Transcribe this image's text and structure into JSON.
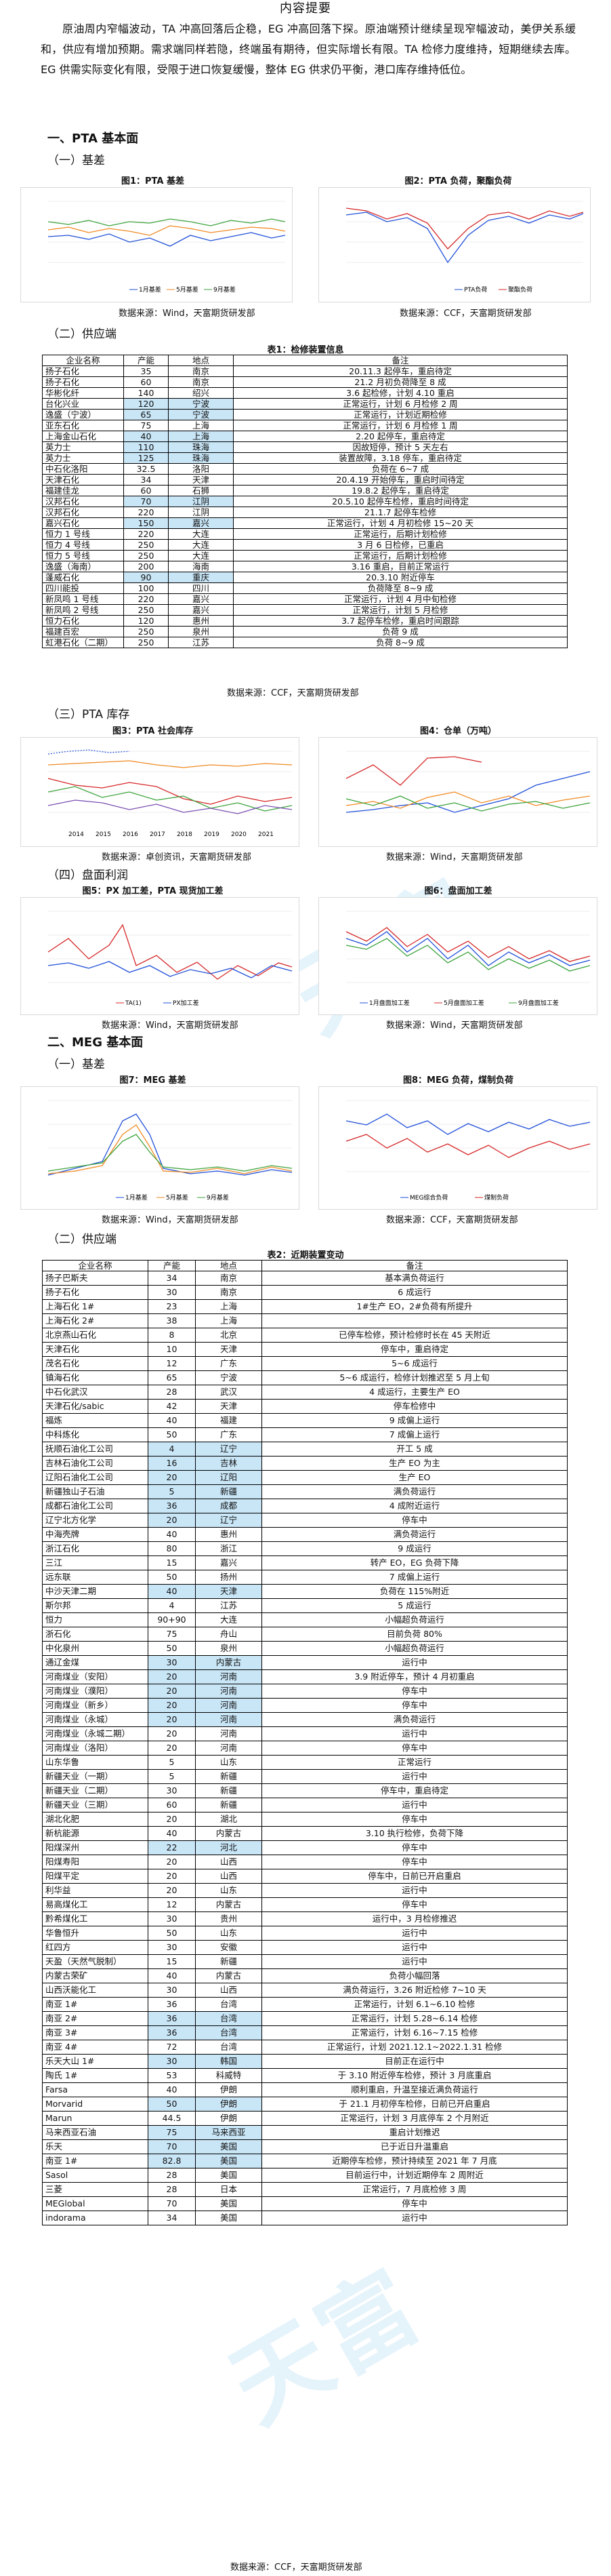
{
  "doc_title": "内容提要",
  "summary": "原油周内窄幅波动，TA 冲高回落后企稳，EG 冲高回落下探。原油端预计继续呈现窄幅波动，美伊关系缓和，供应有增加预期。需求端同样若隐，终端虽有期待，但实际增长有限。TA 检修力度维持，短期继续去库。EG 供需实际变化有限，受限于进口恢复缓慢，整体 EG 供求仍平衡，港口库存维持低位。",
  "sections": {
    "pta": "一、PTA 基本面",
    "pta_basis": "（一）基差",
    "pta_supply": "（二）供应端",
    "pta_inventory": "（三）PTA 库存",
    "pta_margin": "（四）盘面利润",
    "meg": "二、MEG 基本面",
    "meg_basis": "（一）基差",
    "meg_supply": "（二）供应端"
  },
  "figures": {
    "f1": {
      "title": "图1：PTA 基差",
      "source": "数据来源：Wind，天富期货研发部",
      "legend": [
        "1月基差",
        "5月基差",
        "9月基差"
      ]
    },
    "f2": {
      "title": "图2：PTA 负荷，聚酯负荷",
      "source": "数据来源：CCF，天富期货研发部",
      "legend": [
        "PTA负荷",
        "聚酯负荷"
      ]
    },
    "f3": {
      "title": "图3：PTA 社会库存",
      "source": "数据来源：卓创资讯，天富期货研发部",
      "legend": [
        "2014",
        "2015",
        "2016",
        "2017",
        "2018",
        "2019",
        "2020",
        "2021"
      ]
    },
    "f4": {
      "title": "图4：仓单（万吨）",
      "source": "数据来源：Wind，天富期货研发部"
    },
    "f5": {
      "title": "图5：PX 加工差，PTA 现货加工差",
      "source": "数据来源：Wind，天富期货研发部",
      "legend": [
        "TA(1)",
        "PX加工差"
      ]
    },
    "f6": {
      "title": "图6：盘面加工差",
      "source": "数据来源：Wind，天富期货研发部",
      "legend": [
        "1月盘面加工差",
        "5月盘面加工差",
        "9月盘面加工差"
      ]
    },
    "f7": {
      "title": "图7：MEG 基差",
      "source": "数据来源：Wind，天富期货研发部",
      "legend": [
        "1月基差",
        "5月基差",
        "9月基差"
      ]
    },
    "f8": {
      "title": "图8：MEG 负荷，煤制负荷",
      "source": "数据来源：CCF，天富期货研发部",
      "legend": [
        "MEG综合负荷",
        "煤制负荷"
      ]
    }
  },
  "table1": {
    "title": "表1：检修装置信息",
    "headers": [
      "企业名称",
      "产能",
      "地点",
      "备注"
    ],
    "rows": [
      [
        "扬子石化",
        "35",
        "南京",
        "20.11.3 起停车，重启待定"
      ],
      [
        "扬子石化",
        "60",
        "南京",
        "21.2 月初负荷降至 8 成"
      ],
      [
        "华彬化纤",
        "140",
        "绍兴",
        "3.6 起检修，计划 4.10 重启"
      ],
      [
        "台化兴业",
        "120",
        "宁波",
        "正常运行，计划 6 月检修 2 周"
      ],
      [
        "逸盛（宁波）",
        "65",
        "宁波",
        "正常运行，计划近期检修"
      ],
      [
        "亚东石化",
        "75",
        "上海",
        "正常运行，计划 6 月检修 1 周"
      ],
      [
        "上海金山石化",
        "40",
        "上海",
        "2.20 起停车，重启待定"
      ],
      [
        "英力士",
        "110",
        "珠海",
        "因故短停，预计 5 天左右"
      ],
      [
        "英力士",
        "125",
        "珠海",
        "装置故障，3.18 停车，重启待定"
      ],
      [
        "中石化洛阳",
        "32.5",
        "洛阳",
        "负荷在 6~7 成"
      ],
      [
        "天津石化",
        "34",
        "天津",
        "20.4.19 开始停车，重启时间待定"
      ],
      [
        "福建佳龙",
        "60",
        "石狮",
        "19.8.2 起停车，重启待定"
      ],
      [
        "汉邦石化",
        "70",
        "江阴",
        "20.5.10 起停车检修，重启时间待定"
      ],
      [
        "汉邦石化",
        "220",
        "江阴",
        "21.1.7 起停车检修"
      ],
      [
        "嘉兴石化",
        "150",
        "嘉兴",
        "正常运行，计划 4 月初检修 15~20 天"
      ],
      [
        "恒力 1 号线",
        "220",
        "大连",
        "正常运行，后期计划检修"
      ],
      [
        "恒力 4 号线",
        "250",
        "大连",
        "3 月 6 日检修，已重启"
      ],
      [
        "恒力 5 号线",
        "250",
        "大连",
        "正常运行，后期计划检修"
      ],
      [
        "逸盛（海南）",
        "200",
        "海南",
        "3.16 重启，目前正常运行"
      ],
      [
        "蓬威石化",
        "90",
        "重庆",
        "20.3.10 附近停车"
      ],
      [
        "四川能投",
        "100",
        "四川",
        "负荷降至 8~9 成"
      ],
      [
        "新凤鸣 1 号线",
        "220",
        "嘉兴",
        "正常运行，计划 4 月中旬检修"
      ],
      [
        "新凤鸣 2 号线",
        "250",
        "嘉兴",
        "正常运行，计划 5 月检修"
      ],
      [
        "恒力石化",
        "120",
        "惠州",
        "3.7 起停车检修，重启时间跟踪"
      ],
      [
        "福建百宏",
        "250",
        "泉州",
        "负荷 9 成"
      ],
      [
        "虹港石化（二期）",
        "250",
        "江苏",
        "负荷 8~9 成"
      ]
    ],
    "source": "数据来源：CCF，天富期货研发部"
  },
  "table2": {
    "title": "表2：近期装置变动",
    "headers": [
      "企业名称",
      "产能",
      "地点",
      "备注"
    ],
    "rows": [
      [
        "扬子巴斯夫",
        "34",
        "南京",
        "基本满负荷运行"
      ],
      [
        "扬子石化",
        "30",
        "南京",
        "6 成运行"
      ],
      [
        "上海石化 1#",
        "23",
        "上海",
        "1#生产 EO，2#负荷有所提升"
      ],
      [
        "上海石化 2#",
        "38",
        "上海",
        ""
      ],
      [
        "北京燕山石化",
        "8",
        "北京",
        "已停车检修，预计检修时长在 45 天附近"
      ],
      [
        "天津石化",
        "10",
        "天津",
        "停车中，重启待定"
      ],
      [
        "茂名石化",
        "12",
        "广东",
        "5~6 成运行"
      ],
      [
        "镇海石化",
        "65",
        "宁波",
        "5~6 成运行，检修计划推迟至 5 月上旬"
      ],
      [
        "中石化武汉",
        "28",
        "武汉",
        "4 成运行，主要生产 EO"
      ],
      [
        "天津石化/sabic",
        "42",
        "天津",
        "停车检修中"
      ],
      [
        "福炼",
        "40",
        "福建",
        "9 成偏上运行"
      ],
      [
        "中科炼化",
        "50",
        "广东",
        "7 成偏上运行"
      ],
      [
        "抚顺石油化工公司",
        "4",
        "辽宁",
        "开工 5 成"
      ],
      [
        "吉林石油化工公司",
        "16",
        "吉林",
        "生产 EO 为主"
      ],
      [
        "辽阳石油化工公司",
        "20",
        "辽阳",
        "生产 EO"
      ],
      [
        "新疆独山子石油",
        "5",
        "新疆",
        "满负荷运行"
      ],
      [
        "成都石油化工公司",
        "36",
        "成都",
        "4 成附近运行"
      ],
      [
        "辽宁北方化学",
        "20",
        "辽宁",
        "停车中"
      ],
      [
        "中海壳牌",
        "40",
        "惠州",
        "满负荷运行"
      ],
      [
        "浙江石化",
        "80",
        "浙江",
        "9 成运行"
      ],
      [
        "三江",
        "15",
        "嘉兴",
        "转产 EO，EG 负荷下降"
      ],
      [
        "远东联",
        "50",
        "扬州",
        "7 成偏上运行"
      ],
      [
        "中沙天津二期",
        "40",
        "天津",
        "负荷在 115%附近"
      ],
      [
        "斯尔邦",
        "4",
        "江苏",
        "5 成运行"
      ],
      [
        "恒力",
        "90+90",
        "大连",
        "小幅超负荷运行"
      ],
      [
        "浙石化",
        "75",
        "舟山",
        "目前负荷 80%"
      ],
      [
        "中化泉州",
        "50",
        "泉州",
        "小幅超负荷运行"
      ],
      [
        "通辽金煤",
        "30",
        "内蒙古",
        "运行中"
      ],
      [
        "河南煤业（安阳）",
        "20",
        "河南",
        "3.9 附近停车，预计 4 月初重启"
      ],
      [
        "河南煤业（濮阳）",
        "20",
        "河南",
        "停车中"
      ],
      [
        "河南煤业（新乡）",
        "20",
        "河南",
        "停车中"
      ],
      [
        "河南煤业（永城）",
        "20",
        "河南",
        "满负荷运行"
      ],
      [
        "河南煤业（永城二期）",
        "20",
        "河南",
        "运行中"
      ],
      [
        "河南煤业（洛阳）",
        "20",
        "河南",
        "停车中"
      ],
      [
        "山东华鲁",
        "5",
        "山东",
        "正常运行"
      ],
      [
        "新疆天业（一期）",
        "5",
        "新疆",
        "运行中"
      ],
      [
        "新疆天业（二期）",
        "30",
        "新疆",
        "停车中，重启待定"
      ],
      [
        "新疆天业（三期）",
        "60",
        "新疆",
        "运行中"
      ],
      [
        "湖北化肥",
        "20",
        "湖北",
        "停车中"
      ],
      [
        "新杭能源",
        "40",
        "内蒙古",
        "3.10 执行检修，负荷下降"
      ],
      [
        "阳煤深州",
        "22",
        "河北",
        "停车中"
      ],
      [
        "阳煤寿阳",
        "20",
        "山西",
        "停车中"
      ],
      [
        "阳煤平定",
        "20",
        "山西",
        "停车中，日前已开启重启"
      ],
      [
        "利华益",
        "20",
        "山东",
        "运行中"
      ],
      [
        "易高煤化工",
        "12",
        "内蒙古",
        "停车中"
      ],
      [
        "黔希煤化工",
        "30",
        "贵州",
        "运行中，3 月检修推迟"
      ],
      [
        "华鲁恒升",
        "50",
        "山东",
        "运行中"
      ],
      [
        "红四方",
        "30",
        "安徽",
        "运行中"
      ],
      [
        "天盈（天然气脱制）",
        "15",
        "新疆",
        "运行中"
      ],
      [
        "内蒙古荣矿",
        "40",
        "内蒙古",
        "负荷小幅回落"
      ],
      [
        "山西沃能化工",
        "30",
        "山西",
        "满负荷运行，3.26 附近检修 7~10 天"
      ],
      [
        "南亚 1#",
        "36",
        "台湾",
        "正常运行，计划 6.1~6.10 检修"
      ],
      [
        "南亚 2#",
        "36",
        "台湾",
        "正常运行，计划 5.28~6.14 检修"
      ],
      [
        "南亚 3#",
        "36",
        "台湾",
        "正常运行，计划 6.16~7.15 检修"
      ],
      [
        "南亚 4#",
        "72",
        "台湾",
        "正常运行，计划 2021.12.1~2022.1.31 检修"
      ],
      [
        "乐天大山 1#",
        "30",
        "韩国",
        "目前正在运行中"
      ],
      [
        "陶氏 1#",
        "53",
        "科威特",
        "于 3.10 附近停车检修，预计 3 月底重启"
      ],
      [
        "Farsa",
        "40",
        "伊朗",
        "顺利重启，升温至接近满负荷运行"
      ],
      [
        "Morvarid",
        "50",
        "伊朗",
        "于 21.1 月初停车检修，日前已开启重启"
      ],
      [
        "Marun",
        "44.5",
        "伊朗",
        "正常运行，计划 3 月底停车 2 个月附近"
      ],
      [
        "马来西亚石油",
        "75",
        "马来西亚",
        "重启计划推迟"
      ],
      [
        "乐天",
        "70",
        "美国",
        "已于近日升温重启"
      ],
      [
        "南亚 1#",
        "82.8",
        "美国",
        "近期停车检修，预计持续至 2021 年 7 月底"
      ],
      [
        "Sasol",
        "28",
        "美国",
        "目前运行中，计划近期停车 2 周附近"
      ],
      [
        "三菱",
        "28",
        "日本",
        "正常运行，7 月底检修 3 周"
      ],
      [
        "MEGlobal",
        "70",
        "美国",
        "停车中"
      ],
      [
        "indorama",
        "34",
        "美国",
        "运行中"
      ]
    ],
    "source": "数据来源：CCF，天富期货研发部"
  },
  "watermark": {
    "text": "天富",
    "pinyin": "TIANFU"
  },
  "colors": {
    "blue": "#1f4fd8",
    "orange": "#f08a24",
    "green": "#3ca33c",
    "red": "#d62728",
    "purple": "#7b4fb3",
    "gray": "#8c8c8c"
  }
}
